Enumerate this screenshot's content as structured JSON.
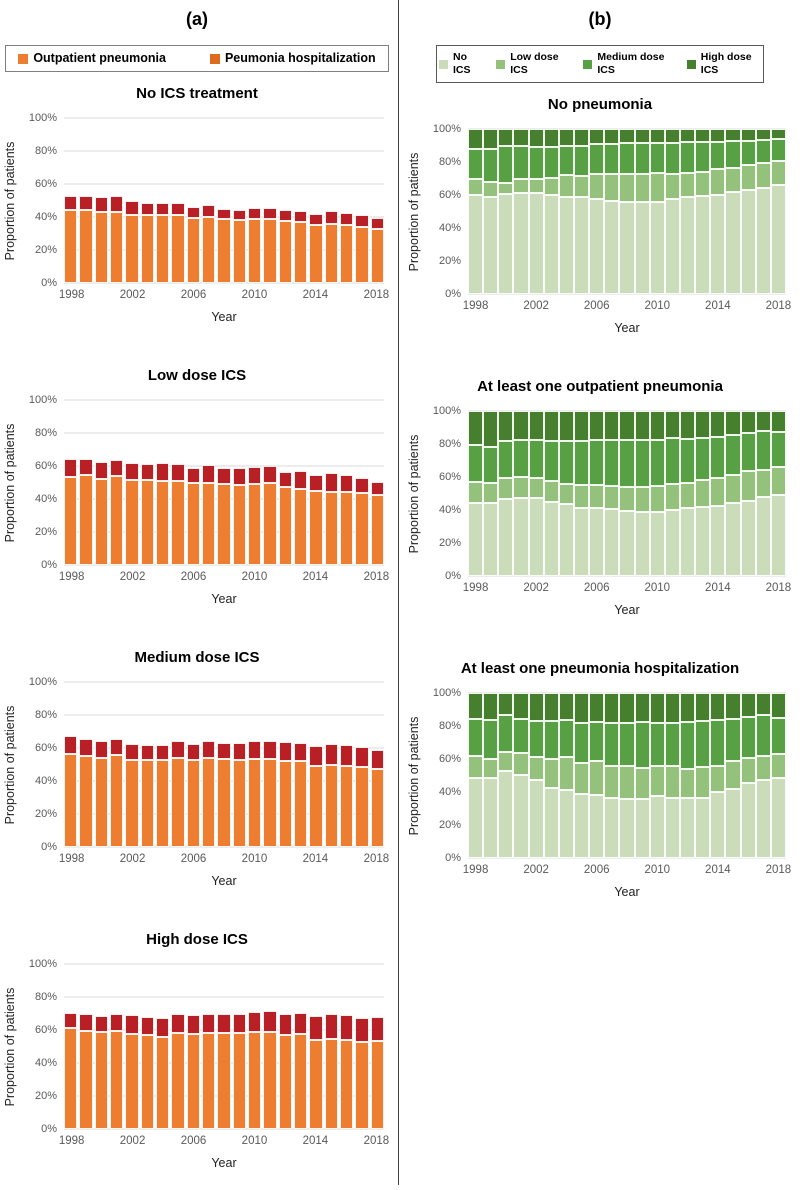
{
  "figure": {
    "panel_a": {
      "label": "(a)",
      "legend": [
        {
          "label": "Outpatient pneumonia",
          "color": "#ED7D31"
        },
        {
          "label": "Peumonia hospitalization",
          "color": "#DE6A1E"
        }
      ]
    },
    "panel_b": {
      "label": "(b)",
      "legend": [
        {
          "label": "No ICS",
          "color": "#CBDCBA"
        },
        {
          "label": "Low dose ICS",
          "color": "#94C27C"
        },
        {
          "label": "Medium dose ICS",
          "color": "#57A144"
        },
        {
          "label": "High dose ICS",
          "color": "#46802E"
        }
      ]
    }
  },
  "axes": {
    "ylabel": "Proportion of patients",
    "xlabel": "Year",
    "ytick_labels": [
      "0%",
      "20%",
      "40%",
      "60%",
      "80%",
      "100%"
    ],
    "xtick_years": [
      1998,
      2002,
      2006,
      2010,
      2014,
      2018
    ],
    "ylim": [
      0,
      100
    ],
    "grid": true
  },
  "chart_data": [
    {
      "panel": "a",
      "type": "bar",
      "stacked": true,
      "title": "No ICS treatment",
      "categories": [
        1998,
        1999,
        2000,
        2001,
        2002,
        2003,
        2004,
        2005,
        2006,
        2007,
        2008,
        2009,
        2010,
        2011,
        2012,
        2013,
        2014,
        2015,
        2016,
        2017,
        2018
      ],
      "series": [
        {
          "name": "Outpatient pneumonia",
          "color": "#ED7D31",
          "values": [
            44,
            44,
            43,
            43,
            41.5,
            41,
            41,
            41,
            39.5,
            40,
            38.5,
            38,
            38.5,
            39,
            37.5,
            37,
            35,
            35.5,
            35,
            34,
            32.5
          ]
        },
        {
          "name": "Peumonia hospitalization",
          "color": "#B92025",
          "values": [
            9,
            9,
            9,
            9.5,
            8.5,
            7.5,
            7.5,
            7.5,
            6.5,
            7,
            6.5,
            6.5,
            7,
            6.5,
            6.5,
            6.5,
            7,
            8,
            7.5,
            7,
            7
          ]
        }
      ]
    },
    {
      "panel": "a",
      "type": "bar",
      "stacked": true,
      "title": "Low dose ICS",
      "categories": [
        1998,
        1999,
        2000,
        2001,
        2002,
        2003,
        2004,
        2005,
        2006,
        2007,
        2008,
        2009,
        2010,
        2011,
        2012,
        2013,
        2014,
        2015,
        2016,
        2017,
        2018
      ],
      "series": [
        {
          "name": "Outpatient pneumonia",
          "color": "#ED7D31",
          "values": [
            53.5,
            54.5,
            52,
            54,
            51.5,
            51.5,
            51,
            51,
            49.5,
            50,
            49,
            48.5,
            49,
            49.5,
            47,
            46,
            45,
            44.5,
            44.5,
            43.5,
            42.5
          ]
        },
        {
          "name": "Peumonia hospitalization",
          "color": "#B92025",
          "values": [
            11,
            10,
            10.5,
            9.5,
            10.5,
            10,
            11,
            10.5,
            9.5,
            10.5,
            9.5,
            10,
            10.5,
            10.5,
            9.5,
            11,
            9.5,
            11,
            10,
            9.5,
            8
          ]
        }
      ]
    },
    {
      "panel": "a",
      "type": "bar",
      "stacked": true,
      "title": "Medium dose ICS",
      "categories": [
        1998,
        1999,
        2000,
        2001,
        2002,
        2003,
        2004,
        2005,
        2006,
        2007,
        2008,
        2009,
        2010,
        2011,
        2012,
        2013,
        2014,
        2015,
        2016,
        2017,
        2018
      ],
      "series": [
        {
          "name": "Outpatient pneumonia",
          "color": "#ED7D31",
          "values": [
            56.5,
            55,
            54,
            55.5,
            52.5,
            52.5,
            52.5,
            54,
            52.5,
            54,
            53.5,
            53,
            53.5,
            53.5,
            52,
            52,
            49,
            50,
            49,
            48.5,
            47
          ]
        },
        {
          "name": "Peumonia hospitalization",
          "color": "#B92025",
          "values": [
            10.5,
            10.5,
            10,
            10,
            10,
            9.5,
            9.5,
            10.5,
            10,
            10.5,
            9.5,
            10,
            11,
            11,
            11.5,
            11,
            12,
            12.5,
            13,
            12,
            11.5
          ]
        }
      ]
    },
    {
      "panel": "a",
      "type": "bar",
      "stacked": true,
      "title": "High dose ICS",
      "categories": [
        1998,
        1999,
        2000,
        2001,
        2002,
        2003,
        2004,
        2005,
        2006,
        2007,
        2008,
        2009,
        2010,
        2011,
        2012,
        2013,
        2014,
        2015,
        2016,
        2017,
        2018
      ],
      "series": [
        {
          "name": "Outpatient pneumonia",
          "color": "#ED7D31",
          "values": [
            61,
            59.5,
            58.5,
            59.5,
            57.5,
            57,
            56,
            58,
            57.5,
            58,
            58,
            58,
            59,
            58.5,
            57,
            57.5,
            54,
            54.5,
            54,
            52.5,
            53.5
          ]
        },
        {
          "name": "Peumonia hospitalization",
          "color": "#B92025",
          "values": [
            9.5,
            10.5,
            10,
            10.5,
            11.5,
            11,
            11.5,
            12,
            11.5,
            12,
            11.5,
            12,
            12,
            13,
            13,
            13,
            14.5,
            15,
            15,
            14.5,
            14.5
          ]
        }
      ]
    },
    {
      "panel": "b",
      "type": "bar",
      "stacked": true,
      "title": "No pneumonia",
      "categories": [
        1998,
        1999,
        2000,
        2001,
        2002,
        2003,
        2004,
        2005,
        2006,
        2007,
        2008,
        2009,
        2010,
        2011,
        2012,
        2013,
        2014,
        2015,
        2016,
        2017,
        2018
      ],
      "series": [
        {
          "name": "No ICS",
          "color": "#CBDCBA",
          "values": [
            60,
            59,
            60.5,
            61.5,
            61,
            60,
            59,
            59,
            57.5,
            56.5,
            55.5,
            55.5,
            56,
            57.5,
            58.5,
            59.5,
            60,
            62,
            63,
            64.5,
            66
          ]
        },
        {
          "name": "Low dose ICS",
          "color": "#94C27C",
          "values": [
            10,
            9,
            6.5,
            8,
            9,
            10.5,
            13,
            12.5,
            15,
            16,
            17,
            17.5,
            17.5,
            15.5,
            15,
            14.5,
            15.5,
            14.5,
            15,
            15,
            14.5
          ]
        },
        {
          "name": "Medium dose ICS",
          "color": "#57A144",
          "values": [
            18,
            20,
            23,
            20,
            19,
            18.5,
            17.5,
            18.5,
            18.5,
            18.5,
            19,
            18.5,
            18,
            18.5,
            18.5,
            18,
            16.5,
            16,
            15,
            14,
            13.5
          ]
        },
        {
          "name": "High dose ICS",
          "color": "#46802E",
          "values": [
            12,
            12,
            10,
            10.5,
            11,
            11,
            10.5,
            10,
            9,
            9,
            8.5,
            8.5,
            8.5,
            8.5,
            8,
            8,
            8,
            7.5,
            7,
            6.5,
            6
          ]
        }
      ]
    },
    {
      "panel": "b",
      "type": "bar",
      "stacked": true,
      "title": "At least one outpatient pneumonia",
      "categories": [
        1998,
        1999,
        2000,
        2001,
        2002,
        2003,
        2004,
        2005,
        2006,
        2007,
        2008,
        2009,
        2010,
        2011,
        2012,
        2013,
        2014,
        2015,
        2016,
        2017,
        2018
      ],
      "series": [
        {
          "name": "No ICS",
          "color": "#CBDCBA",
          "values": [
            44.5,
            44.5,
            46.5,
            47,
            47.5,
            45,
            43.5,
            41.5,
            41,
            40.5,
            39.5,
            39,
            39,
            40,
            41,
            42,
            42.5,
            44,
            45.5,
            48,
            49
          ]
        },
        {
          "name": "Low dose ICS",
          "color": "#94C27C",
          "values": [
            12.5,
            12,
            13,
            13,
            12,
            12.5,
            12.5,
            13.5,
            14,
            14,
            14.5,
            15,
            15.5,
            15.5,
            15.5,
            16,
            17,
            17.5,
            18,
            16.5,
            17
          ]
        },
        {
          "name": "Medium dose ICS",
          "color": "#57A144",
          "values": [
            22.5,
            21.5,
            22.5,
            22.5,
            23,
            24.5,
            26,
            27,
            27.5,
            28,
            28.5,
            28.5,
            28,
            28,
            26.5,
            25.5,
            25,
            24,
            23,
            23.5,
            21.5
          ]
        },
        {
          "name": "High dose ICS",
          "color": "#46802E",
          "values": [
            20.5,
            22,
            18,
            17.5,
            17.5,
            18,
            18,
            18,
            17.5,
            17.5,
            17.5,
            17.5,
            17.5,
            16.5,
            17,
            16.5,
            15.5,
            14.5,
            13.5,
            12,
            12.5
          ]
        }
      ]
    },
    {
      "panel": "b",
      "type": "bar",
      "stacked": true,
      "title": "At least one pneumonia hospitalization",
      "categories": [
        1998,
        1999,
        2000,
        2001,
        2002,
        2003,
        2004,
        2005,
        2006,
        2007,
        2008,
        2009,
        2010,
        2011,
        2012,
        2013,
        2014,
        2015,
        2016,
        2017,
        2018
      ],
      "series": [
        {
          "name": "No ICS",
          "color": "#CBDCBA",
          "values": [
            48.5,
            48.5,
            52.5,
            50.5,
            47.5,
            42.5,
            41,
            38.5,
            38,
            36.5,
            36,
            36,
            37.5,
            36.5,
            36.5,
            36.5,
            40,
            42,
            45.5,
            47,
            48.5
          ]
        },
        {
          "name": "Low dose ICS",
          "color": "#94C27C",
          "values": [
            13.5,
            11.5,
            12,
            13,
            13.5,
            17.5,
            20,
            19,
            21,
            19.5,
            19.5,
            18.5,
            18.5,
            19,
            17.5,
            18.5,
            16,
            16.5,
            15,
            15,
            14.5
          ]
        },
        {
          "name": "Medium dose ICS",
          "color": "#57A144",
          "values": [
            22,
            23.5,
            22,
            20.5,
            22,
            23,
            22.5,
            24.5,
            23.5,
            26,
            26.5,
            28,
            26,
            26.5,
            28.5,
            28,
            27.5,
            25.5,
            25,
            24.5,
            22
          ]
        },
        {
          "name": "High dose ICS",
          "color": "#46802E",
          "values": [
            16,
            16.5,
            13.5,
            16,
            17,
            17,
            16.5,
            18,
            17.5,
            18,
            18,
            17.5,
            18,
            18,
            17.5,
            17,
            16.5,
            16,
            14.5,
            13.5,
            15
          ]
        }
      ]
    }
  ]
}
